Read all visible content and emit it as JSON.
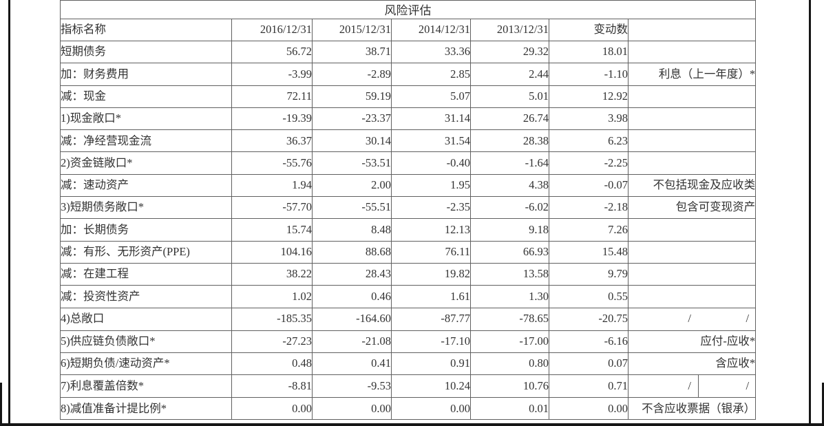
{
  "frame": {
    "line_color": "#161616",
    "background": "#ffffff",
    "border_color": "#5f5f5f"
  },
  "table": {
    "title": "风险评估",
    "columns": [
      "指标名称",
      "2016/12/31",
      "2015/12/31",
      "2014/12/31",
      "2013/12/31",
      "变动数",
      ""
    ],
    "rows": [
      {
        "label": "短期债务",
        "values": [
          "56.72",
          "38.71",
          "33.36",
          "29.32",
          "18.01"
        ],
        "note": "",
        "bold": false,
        "bold_change": false
      },
      {
        "label": "加：财务费用",
        "values": [
          "-3.99",
          "-2.89",
          "2.85",
          "2.44",
          "-1.10"
        ],
        "note": "利息（上一年度）*",
        "bold": false,
        "bold_change": false
      },
      {
        "label": "减：现金",
        "values": [
          "72.11",
          "59.19",
          "5.07",
          "5.01",
          "12.92"
        ],
        "note": "",
        "bold": false,
        "bold_change": false
      },
      {
        "label": "1)现金敞口*",
        "values": [
          "-19.39",
          "-23.37",
          "31.14",
          "26.74",
          "3.98"
        ],
        "note": "",
        "bold": true,
        "bold_change": false
      },
      {
        "label": "减：净经营现金流",
        "values": [
          "36.37",
          "30.14",
          "31.54",
          "28.38",
          "6.23"
        ],
        "note": "",
        "bold": false,
        "bold_change": false
      },
      {
        "label": "2)资金链敞口*",
        "values": [
          "-55.76",
          "-53.51",
          "-0.40",
          "-1.64",
          "-2.25"
        ],
        "note": "",
        "bold": true,
        "bold_change": false
      },
      {
        "label": "减：速动资产",
        "values": [
          "1.94",
          "2.00",
          "1.95",
          "4.38",
          "-0.07"
        ],
        "note": "不包括现金及应收类",
        "bold": false,
        "bold_change": false
      },
      {
        "label": "3)短期债务敞口*",
        "values": [
          "-57.70",
          "-55.51",
          "-2.35",
          "-6.02",
          "-2.18"
        ],
        "note": "包含可变现资产",
        "bold": true,
        "bold_change": true
      },
      {
        "label": "加：长期债务",
        "values": [
          "15.74",
          "8.48",
          "12.13",
          "9.18",
          "7.26"
        ],
        "note": "",
        "bold": false,
        "bold_change": false
      },
      {
        "label": "减：有形、无形资产(PPE)",
        "values": [
          "104.16",
          "88.68",
          "76.11",
          "66.93",
          "15.48"
        ],
        "note": "",
        "bold": false,
        "bold_change": false
      },
      {
        "label": "减：在建工程",
        "values": [
          "38.22",
          "28.43",
          "19.82",
          "13.58",
          "9.79"
        ],
        "note": "",
        "bold": false,
        "bold_change": false
      },
      {
        "label": "减：投资性资产",
        "values": [
          "1.02",
          "0.46",
          "1.61",
          "1.30",
          "0.55"
        ],
        "note": "",
        "bold": false,
        "bold_change": false
      },
      {
        "label": "4)总敞口",
        "values": [
          "-185.35",
          "-164.60",
          "-87.77",
          "-78.65",
          "-20.75"
        ],
        "note_parts": [
          "/",
          "/"
        ],
        "note_divider": false,
        "bold": true,
        "bold_change": true
      },
      {
        "label": "5)供应链负债敞口*",
        "values": [
          "-27.23",
          "-21.08",
          "-17.10",
          "-17.00",
          "-6.16"
        ],
        "note": "应付-应收*",
        "bold": false,
        "bold_change": false
      },
      {
        "label": "6)短期负债/速动资产*",
        "values": [
          "0.48",
          "0.41",
          "0.91",
          "0.80",
          "0.07"
        ],
        "note": "含应收*",
        "bold": false,
        "bold_change": false
      },
      {
        "label": "7)利息覆盖倍数*",
        "values": [
          "-8.81",
          "-9.53",
          "10.24",
          "10.76",
          "0.71"
        ],
        "note_parts": [
          "/",
          "/"
        ],
        "note_divider": true,
        "bold": false,
        "bold_change": false
      },
      {
        "label": "8)减值准备计提比例*",
        "values": [
          "0.00",
          "0.00",
          "0.00",
          "0.01",
          "0.00"
        ],
        "note": "不含应收票据（银承）",
        "bold": false,
        "bold_change": false
      }
    ]
  }
}
